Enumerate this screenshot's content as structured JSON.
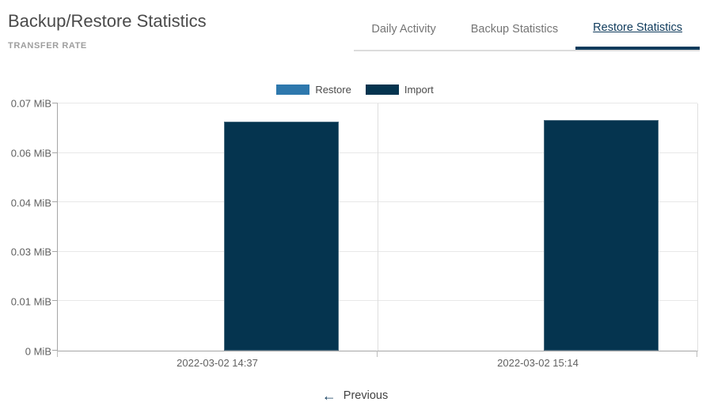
{
  "theme": {
    "accent": "#0f3b5c",
    "restore_color": "#2e78ad",
    "import_color": "#05344f"
  },
  "header": {
    "title": "Backup/Restore Statistics",
    "subtitle": "TRANSFER RATE"
  },
  "tabs": [
    {
      "label": "Daily Activity",
      "active": false
    },
    {
      "label": "Backup Statistics",
      "active": false
    },
    {
      "label": "Restore Statistics",
      "active": true
    }
  ],
  "legend": [
    {
      "label": "Restore",
      "color": "#2e78ad"
    },
    {
      "label": "Import",
      "color": "#05344f"
    }
  ],
  "chart_data": {
    "type": "bar",
    "title": "TRANSFER RATE",
    "categories": [
      "2022-03-02 14:37",
      "2022-03-02 15:14"
    ],
    "series": [
      {
        "name": "Restore",
        "color": "#2e78ad",
        "values": [
          0,
          0
        ]
      },
      {
        "name": "Import",
        "color": "#05344f",
        "values": [
          0.0649,
          0.0653
        ]
      }
    ],
    "y_unit": "MiB",
    "ylim": [
      0,
      0.07
    ],
    "yticks": [
      {
        "value": 0.07,
        "label": "0.07 MiB"
      },
      {
        "value": 0.056,
        "label": "0.06 MiB"
      },
      {
        "value": 0.042,
        "label": "0.04 MiB"
      },
      {
        "value": 0.028,
        "label": "0.03 MiB"
      },
      {
        "value": 0.014,
        "label": "0.01 MiB"
      },
      {
        "value": 0,
        "label": "0 MiB"
      }
    ],
    "grid": true,
    "legend_position": "top"
  },
  "pagination": {
    "previous_label": "Previous",
    "arrow_icon": "←"
  }
}
